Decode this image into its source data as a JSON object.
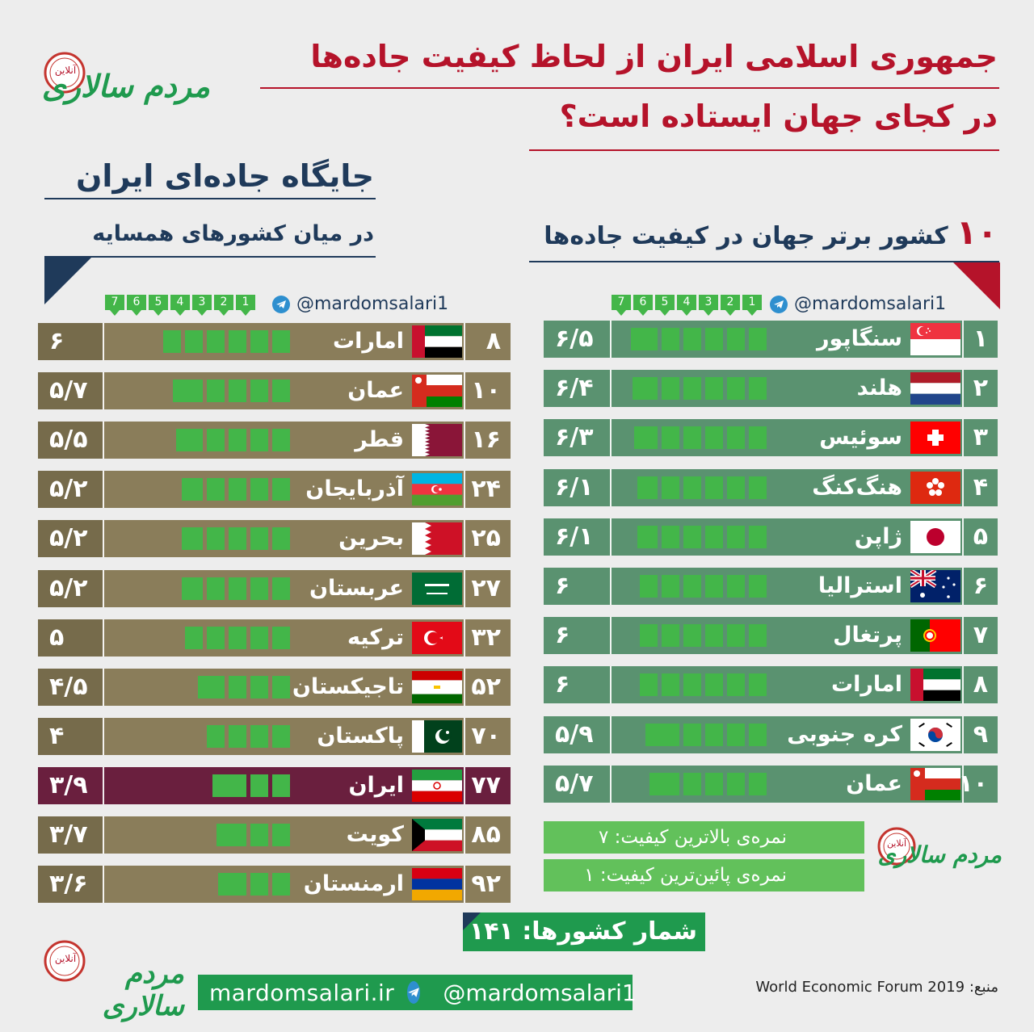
{
  "header": {
    "title_line1": "جمهوری اسلامی ایران از لحاظ کیفیت جاده‌ها",
    "title_line2": "در کجای جهان ایستاده است؟"
  },
  "left": {
    "heading": "جایگاه جاده‌ای ایران",
    "subheading": "در میان کشورهای همسایه"
  },
  "right": {
    "heading_num": "۱۰",
    "heading": "کشور برتر جهان در کیفیت جاده‌ها"
  },
  "handle": "@mardomsalari1",
  "scale_labels": [
    "1",
    "2",
    "3",
    "4",
    "5",
    "6",
    "7"
  ],
  "logo": {
    "text": "مردم سالاری",
    "badge": "آنلاین"
  },
  "legend": {
    "max": "نمره‌ی بالاترین کیفیت: ۷",
    "min": "نمره‌ی پائین‌ترین کیفیت: ۱"
  },
  "country_count": "شمار کشورها: ۱۴۱",
  "footer": {
    "site": "mardomsalari.ir",
    "handle": "@mardomsalari1"
  },
  "source_label": "منبع:",
  "source": "World Economic Forum 2019",
  "colors": {
    "title_red": "#b5132a",
    "navy": "#1f3a5a",
    "bar_green": "#43b649",
    "olive": "#8a7d5a",
    "olive_dark": "#766b4b",
    "teal": "#5a9270",
    "iran": "#6a1f3e"
  },
  "chart_data": [
    {
      "type": "bar",
      "title": "جایگاه جاده‌ای ایران",
      "subtitle": "در میان کشورهای همسایه",
      "ylim": [
        1,
        7
      ],
      "rows": [
        {
          "rank": "۸",
          "country": "امارات",
          "flag": "uae",
          "score_label": "۶",
          "value": 6.0
        },
        {
          "rank": "۱۰",
          "country": "عمان",
          "flag": "oman",
          "score_label": "۵/۷",
          "value": 5.7
        },
        {
          "rank": "۱۶",
          "country": "قطر",
          "flag": "qatar",
          "score_label": "۵/۵",
          "value": 5.5
        },
        {
          "rank": "۲۴",
          "country": "آذربایجان",
          "flag": "azerbaijan",
          "score_label": "۵/۲",
          "value": 5.2
        },
        {
          "rank": "۲۵",
          "country": "بحرین",
          "flag": "bahrain",
          "score_label": "۵/۲",
          "value": 5.2
        },
        {
          "rank": "۲۷",
          "country": "عربستان",
          "flag": "saudi",
          "score_label": "۵/۲",
          "value": 5.2
        },
        {
          "rank": "۳۲",
          "country": "ترکیه",
          "flag": "turkey",
          "score_label": "۵",
          "value": 5.0
        },
        {
          "rank": "۵۲",
          "country": "تاجیکستان",
          "flag": "tajikistan",
          "score_label": "۴/۵",
          "value": 4.5
        },
        {
          "rank": "۷۰",
          "country": "پاکستان",
          "flag": "pakistan",
          "score_label": "۴",
          "value": 4.0
        },
        {
          "rank": "۷۷",
          "country": "ایران",
          "flag": "iran",
          "score_label": "۳/۹",
          "value": 3.9,
          "highlight": true
        },
        {
          "rank": "۸۵",
          "country": "کویت",
          "flag": "kuwait",
          "score_label": "۳/۷",
          "value": 3.7
        },
        {
          "rank": "۹۲",
          "country": "ارمنستان",
          "flag": "armenia",
          "score_label": "۳/۶",
          "value": 3.6
        }
      ]
    },
    {
      "type": "bar",
      "title": "۱۰ کشور برتر جهان در کیفیت جاده‌ها",
      "ylim": [
        1,
        7
      ],
      "rows": [
        {
          "rank": "۱",
          "country": "سنگاپور",
          "flag": "singapore",
          "score_label": "۶/۵",
          "value": 6.5
        },
        {
          "rank": "۲",
          "country": "هلند",
          "flag": "netherlands",
          "score_label": "۶/۴",
          "value": 6.4
        },
        {
          "rank": "۳",
          "country": "سوئیس",
          "flag": "switzerland",
          "score_label": "۶/۳",
          "value": 6.3
        },
        {
          "rank": "۴",
          "country": "هنگ‌کنگ",
          "flag": "hongkong",
          "score_label": "۶/۱",
          "value": 6.1
        },
        {
          "rank": "۵",
          "country": "ژاپن",
          "flag": "japan",
          "score_label": "۶/۱",
          "value": 6.1
        },
        {
          "rank": "۶",
          "country": "استرالیا",
          "flag": "australia",
          "score_label": "۶",
          "value": 6.0
        },
        {
          "rank": "۷",
          "country": "پرتغال",
          "flag": "portugal",
          "score_label": "۶",
          "value": 6.0
        },
        {
          "rank": "۸",
          "country": "امارات",
          "flag": "uae",
          "score_label": "۶",
          "value": 6.0
        },
        {
          "rank": "۹",
          "country": "کره جنوبی",
          "flag": "korea",
          "score_label": "۵/۹",
          "value": 5.9
        },
        {
          "rank": "۱۰",
          "country": "عمان",
          "flag": "oman",
          "score_label": "۵/۷",
          "value": 5.7
        }
      ]
    }
  ]
}
